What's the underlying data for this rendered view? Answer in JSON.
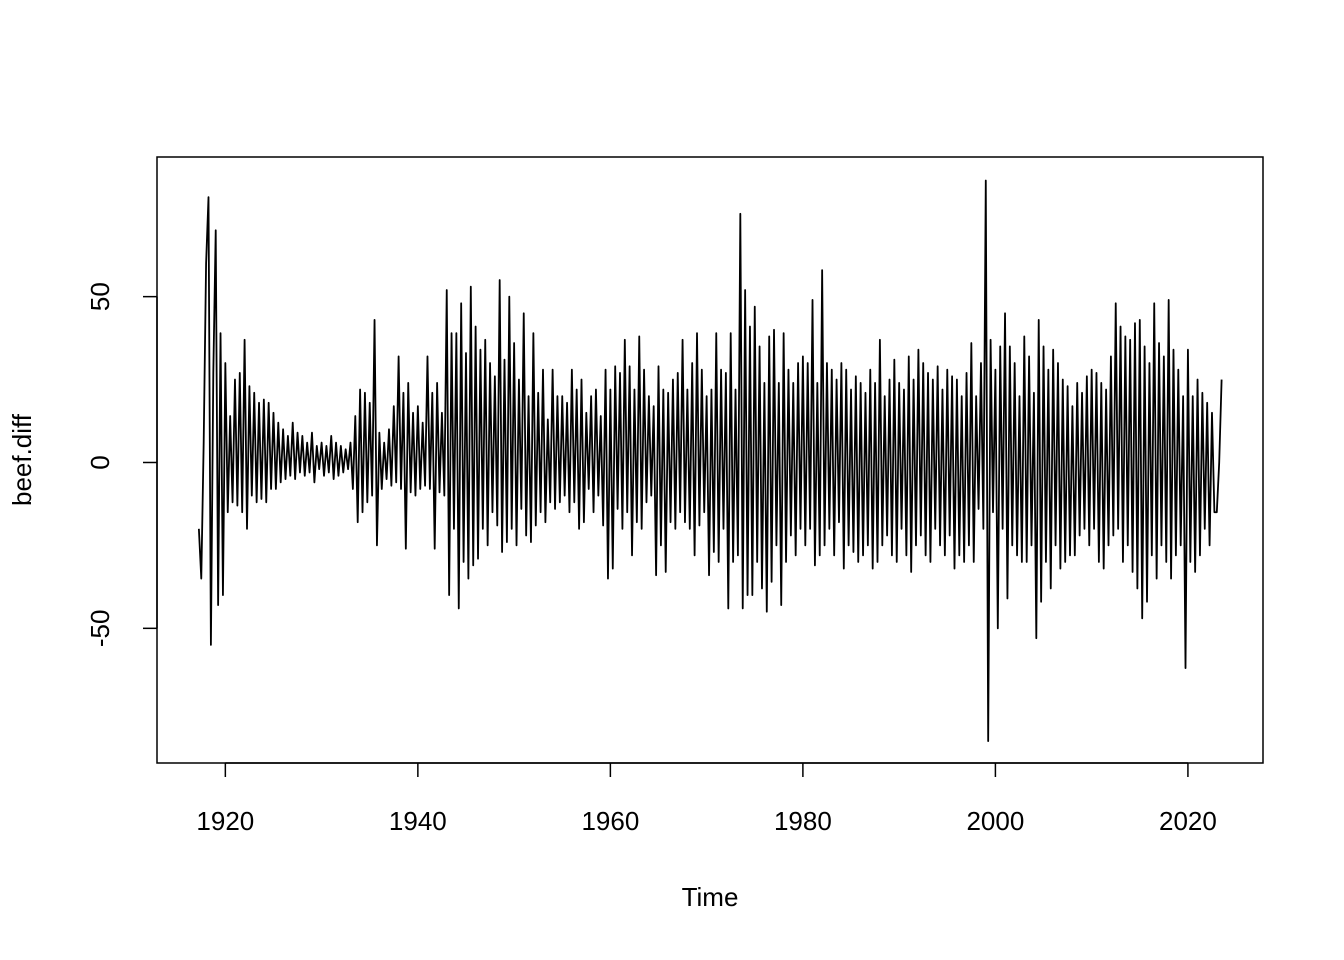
{
  "chart_data": {
    "type": "line",
    "x_label": "Time",
    "y_label": "beef.diff",
    "color": "#000000",
    "xlim": [
      1912.9,
      2027.8
    ],
    "ylim": [
      -90.6,
      92.1
    ],
    "xticks": [
      1920,
      1940,
      1960,
      1980,
      2000,
      2020
    ],
    "yticks": [
      -50,
      0,
      50
    ],
    "x": [
      1917.25,
      1917.5,
      1917.75,
      1918,
      1918.25,
      1918.5,
      1918.75,
      1919,
      1919.25,
      1919.5,
      1919.75,
      1920,
      1920.25,
      1920.5,
      1920.75,
      1921,
      1921.25,
      1921.5,
      1921.75,
      1922,
      1922.25,
      1922.5,
      1922.75,
      1923,
      1923.25,
      1923.5,
      1923.75,
      1924,
      1924.25,
      1924.5,
      1924.75,
      1925,
      1925.25,
      1925.5,
      1925.75,
      1926,
      1926.25,
      1926.5,
      1926.75,
      1927,
      1927.25,
      1927.5,
      1927.75,
      1928,
      1928.25,
      1928.5,
      1928.75,
      1929,
      1929.25,
      1929.5,
      1929.75,
      1930,
      1930.25,
      1930.5,
      1930.75,
      1931,
      1931.25,
      1931.5,
      1931.75,
      1932,
      1932.25,
      1932.5,
      1932.75,
      1933,
      1933.25,
      1933.5,
      1933.75,
      1934,
      1934.25,
      1934.5,
      1934.75,
      1935,
      1935.25,
      1935.5,
      1935.75,
      1936,
      1936.25,
      1936.5,
      1936.75,
      1937,
      1937.25,
      1937.5,
      1937.75,
      1938,
      1938.25,
      1938.5,
      1938.75,
      1939,
      1939.25,
      1939.5,
      1939.75,
      1940,
      1940.25,
      1940.5,
      1940.75,
      1941,
      1941.25,
      1941.5,
      1941.75,
      1942,
      1942.25,
      1942.5,
      1942.75,
      1943,
      1943.25,
      1943.5,
      1943.75,
      1944,
      1944.25,
      1944.5,
      1944.75,
      1945,
      1945.25,
      1945.5,
      1945.75,
      1946,
      1946.25,
      1946.5,
      1946.75,
      1947,
      1947.25,
      1947.5,
      1947.75,
      1948,
      1948.25,
      1948.5,
      1948.75,
      1949,
      1949.25,
      1949.5,
      1949.75,
      1950,
      1950.25,
      1950.5,
      1950.75,
      1951,
      1951.25,
      1951.5,
      1951.75,
      1952,
      1952.25,
      1952.5,
      1952.75,
      1953,
      1953.25,
      1953.5,
      1953.75,
      1954,
      1954.25,
      1954.5,
      1954.75,
      1955,
      1955.25,
      1955.5,
      1955.75,
      1956,
      1956.25,
      1956.5,
      1956.75,
      1957,
      1957.25,
      1957.5,
      1957.75,
      1958,
      1958.25,
      1958.5,
      1958.75,
      1959,
      1959.25,
      1959.5,
      1959.75,
      1960,
      1960.25,
      1960.5,
      1960.75,
      1961,
      1961.25,
      1961.5,
      1961.75,
      1962,
      1962.25,
      1962.5,
      1962.75,
      1963,
      1963.25,
      1963.5,
      1963.75,
      1964,
      1964.25,
      1964.5,
      1964.75,
      1965,
      1965.25,
      1965.5,
      1965.75,
      1966,
      1966.25,
      1966.5,
      1966.75,
      1967,
      1967.25,
      1967.5,
      1967.75,
      1968,
      1968.25,
      1968.5,
      1968.75,
      1969,
      1969.25,
      1969.5,
      1969.75,
      1970,
      1970.25,
      1970.5,
      1970.75,
      1971,
      1971.25,
      1971.5,
      1971.75,
      1972,
      1972.25,
      1972.5,
      1972.75,
      1973,
      1973.25,
      1973.5,
      1973.75,
      1974,
      1974.25,
      1974.5,
      1974.75,
      1975,
      1975.25,
      1975.5,
      1975.75,
      1976,
      1976.25,
      1976.5,
      1976.75,
      1977,
      1977.25,
      1977.5,
      1977.75,
      1978,
      1978.25,
      1978.5,
      1978.75,
      1979,
      1979.25,
      1979.5,
      1979.75,
      1980,
      1980.25,
      1980.5,
      1980.75,
      1981,
      1981.25,
      1981.5,
      1981.75,
      1982,
      1982.25,
      1982.5,
      1982.75,
      1983,
      1983.25,
      1983.5,
      1983.75,
      1984,
      1984.25,
      1984.5,
      1984.75,
      1985,
      1985.25,
      1985.5,
      1985.75,
      1986,
      1986.25,
      1986.5,
      1986.75,
      1987,
      1987.25,
      1987.5,
      1987.75,
      1988,
      1988.25,
      1988.5,
      1988.75,
      1989,
      1989.25,
      1989.5,
      1989.75,
      1990,
      1990.25,
      1990.5,
      1990.75,
      1991,
      1991.25,
      1991.5,
      1991.75,
      1992,
      1992.25,
      1992.5,
      1992.75,
      1993,
      1993.25,
      1993.5,
      1993.75,
      1994,
      1994.25,
      1994.5,
      1994.75,
      1995,
      1995.25,
      1995.5,
      1995.75,
      1996,
      1996.25,
      1996.5,
      1996.75,
      1997,
      1997.25,
      1997.5,
      1997.75,
      1998,
      1998.25,
      1998.5,
      1998.75,
      1999,
      1999.25,
      1999.5,
      1999.75,
      2000,
      2000.25,
      2000.5,
      2000.75,
      2001,
      2001.25,
      2001.5,
      2001.75,
      2002,
      2002.25,
      2002.5,
      2002.75,
      2003,
      2003.25,
      2003.5,
      2003.75,
      2004,
      2004.25,
      2004.5,
      2004.75,
      2005,
      2005.25,
      2005.5,
      2005.75,
      2006,
      2006.25,
      2006.5,
      2006.75,
      2007,
      2007.25,
      2007.5,
      2007.75,
      2008,
      2008.25,
      2008.5,
      2008.75,
      2009,
      2009.25,
      2009.5,
      2009.75,
      2010,
      2010.25,
      2010.5,
      2010.75,
      2011,
      2011.25,
      2011.5,
      2011.75,
      2012,
      2012.25,
      2012.5,
      2012.75,
      2013,
      2013.25,
      2013.5,
      2013.75,
      2014,
      2014.25,
      2014.5,
      2014.75,
      2015,
      2015.25,
      2015.5,
      2015.75,
      2016,
      2016.25,
      2016.5,
      2016.75,
      2017,
      2017.25,
      2017.5,
      2017.75,
      2018,
      2018.25,
      2018.5,
      2018.75,
      2019,
      2019.25,
      2019.5,
      2019.75,
      2020,
      2020.25,
      2020.5,
      2020.75,
      2021,
      2021.25,
      2021.5,
      2021.75,
      2022,
      2022.25,
      2022.5,
      2022.75,
      2023,
      2023.25,
      2023.5
    ],
    "values": [
      -20,
      -35,
      6,
      60,
      80,
      -55,
      27,
      70,
      -43,
      39,
      -40,
      30,
      -15,
      14,
      -12,
      25,
      -13,
      27,
      -15,
      37,
      -20,
      23,
      -10,
      21,
      -12,
      18,
      -11,
      19,
      -12,
      18,
      -8,
      15,
      -8,
      12,
      -6,
      10,
      -5,
      8,
      -4,
      12,
      -5,
      9,
      -3,
      8,
      -4,
      6,
      -3,
      9,
      -6,
      5,
      -2,
      6,
      -4,
      5,
      -3,
      8,
      -5,
      6,
      -4,
      5,
      -3,
      4,
      -2,
      6,
      -8,
      14,
      -18,
      22,
      -15,
      21,
      -12,
      18,
      -10,
      43,
      -25,
      9,
      -8,
      6,
      -5,
      10,
      -7,
      17,
      -6,
      32,
      -8,
      21,
      -26,
      24,
      -9,
      15,
      -10,
      17,
      -8,
      12,
      -7,
      32,
      -8,
      21,
      -26,
      24,
      -9,
      15,
      -10,
      52,
      -40,
      39,
      -20,
      39,
      -44,
      48,
      -30,
      33,
      -35,
      53,
      -31,
      41,
      -29,
      34,
      -20,
      37,
      -25,
      30,
      -15,
      26,
      -19,
      55,
      -27,
      31,
      -24,
      50,
      -20,
      36,
      -25,
      25,
      -14,
      45,
      -22,
      20,
      -24,
      39,
      -19,
      21,
      -15,
      28,
      -18,
      13,
      -12,
      28,
      -14,
      20,
      -12,
      20,
      -10,
      18,
      -15,
      28,
      -12,
      22,
      -20,
      25,
      -18,
      15,
      -8,
      20,
      -15,
      22,
      -10,
      14,
      -19,
      28,
      -35,
      22,
      -32,
      29,
      -14,
      27,
      -20,
      37,
      -15,
      29,
      -28,
      22,
      -18,
      38,
      -20,
      28,
      -12,
      20,
      -10,
      17,
      -34,
      29,
      -25,
      22,
      -33,
      21,
      -18,
      25,
      -20,
      27,
      -15,
      37,
      -18,
      22,
      -20,
      30,
      -28,
      39,
      -19,
      28,
      -15,
      20,
      -34,
      22,
      -27,
      39,
      -30,
      28,
      -20,
      27,
      -44,
      39,
      -30,
      22,
      -28,
      75,
      -44,
      52,
      -40,
      41,
      -40,
      47,
      -30,
      35,
      -38,
      24,
      -45,
      38,
      -36,
      40,
      -25,
      24,
      -43,
      39,
      -30,
      28,
      -22,
      24,
      -28,
      30,
      -20,
      32,
      -25,
      30,
      -20,
      49,
      -31,
      24,
      -28,
      58,
      -25,
      30,
      -20,
      28,
      -28,
      25,
      -18,
      30,
      -32,
      28,
      -25,
      22,
      -27,
      26,
      -30,
      24,
      -28,
      21,
      -25,
      28,
      -32,
      24,
      -30,
      37,
      -25,
      20,
      -22,
      25,
      -28,
      31,
      -30,
      24,
      -20,
      22,
      -28,
      32,
      -33,
      25,
      -25,
      34,
      -22,
      30,
      -28,
      27,
      -30,
      25,
      -20,
      29,
      -25,
      22,
      -28,
      28,
      -22,
      26,
      -32,
      25,
      -28,
      20,
      -30,
      27,
      -25,
      36,
      -30,
      20,
      -14,
      30,
      -20,
      85,
      -84,
      37,
      -15,
      28,
      -50,
      35,
      -20,
      45,
      -41,
      35,
      -25,
      30,
      -28,
      20,
      -30,
      38,
      -30,
      32,
      -25,
      21,
      -53,
      43,
      -42,
      35,
      -30,
      28,
      -38,
      34,
      -25,
      30,
      -32,
      25,
      -30,
      23,
      -28,
      17,
      -28,
      24,
      -22,
      21,
      -20,
      26,
      -25,
      28,
      -20,
      27,
      -30,
      24,
      -32,
      22,
      -25,
      32,
      -22,
      48,
      -20,
      41,
      -30,
      38,
      -25,
      37,
      -33,
      42,
      -38,
      43,
      -47,
      35,
      -42,
      30,
      -28,
      48,
      -35,
      36,
      -25,
      32,
      -30,
      49,
      -35,
      34,
      -28,
      28,
      -25,
      20,
      -62,
      34,
      -30,
      20,
      -33,
      25,
      -28,
      21,
      -20,
      18,
      -25,
      15,
      -15,
      -15,
      0,
      25
    ]
  }
}
